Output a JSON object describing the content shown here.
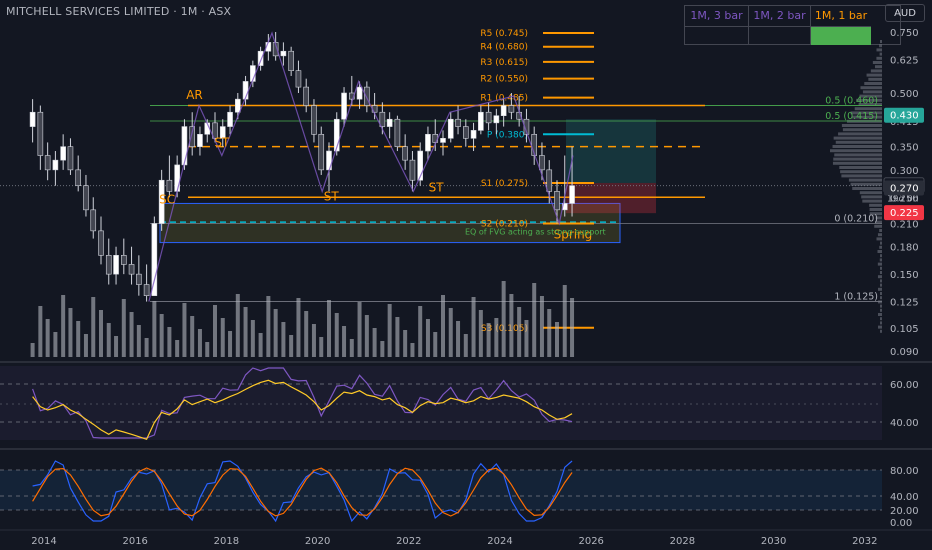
{
  "header": {
    "title": "MITCHELL SERVICES LIMITED · 1M · ASX",
    "currency": "AUD"
  },
  "timeframes": [
    {
      "label": "1M, 3 bar",
      "color": "#7e57c2"
    },
    {
      "label": "1M, 2 bar",
      "color": "#7e57c2"
    },
    {
      "label": "1M, 1 bar",
      "color": "#ff9800"
    }
  ],
  "chart_data": {
    "type": "candlestick",
    "x_ticks": [
      "2014",
      "2016",
      "2018",
      "2020",
      "2022",
      "2024",
      "2026",
      "2028",
      "2030",
      "2032"
    ],
    "price_axis_ticks": [
      "0.750",
      "0.625",
      "0.500",
      "0.415",
      "0.350",
      "0.300",
      "0.250",
      "0.210",
      "0.180",
      "0.150",
      "0.125",
      "0.105",
      "0.090"
    ],
    "price_badges": [
      {
        "label": "0.430",
        "value": 0.43,
        "color": "#26a69a"
      },
      {
        "label": "0.270",
        "value": 0.27,
        "color": "#131722",
        "sub": "19d 0h"
      },
      {
        "label": "0.270",
        "value": 0.265,
        "color": "#2a2e39"
      },
      {
        "label": "0.225",
        "value": 0.225,
        "color": "#f23645"
      }
    ],
    "pivots": [
      {
        "label": "R5 (0.745)",
        "value": 0.745
      },
      {
        "label": "R4 (0.680)",
        "value": 0.68
      },
      {
        "label": "R3 (0.615)",
        "value": 0.615
      },
      {
        "label": "R2 (0.550)",
        "value": 0.55
      },
      {
        "label": "R1 (0.485)",
        "value": 0.485
      },
      {
        "label": "P (0.380)",
        "value": 0.38
      },
      {
        "label": "S1 (0.275)",
        "value": 0.275
      },
      {
        "label": "S2 (0.210)",
        "value": 0.21
      },
      {
        "label": "S3 (0.105)",
        "value": 0.105
      }
    ],
    "fib_levels": [
      {
        "label": "0.5 (0.460)",
        "value": 0.46
      },
      {
        "label": "0.5 (0.415)",
        "value": 0.415
      },
      {
        "label": "0 (0.210)",
        "value": 0.21
      },
      {
        "label": "1 (0.125)",
        "value": 0.125
      }
    ],
    "wyckoff_labels": [
      "AR",
      "ST",
      "SC",
      "ST",
      "ST",
      "Spring"
    ],
    "annotation": "EQ of FVG acting as strong support",
    "rsi": {
      "ticks": [
        "60.00",
        "40.00"
      ]
    },
    "stoch": {
      "ticks": [
        "80.00",
        "40.00",
        "20.00",
        "0.00"
      ]
    },
    "series": [
      {
        "t": 2013.75,
        "o": 0.4,
        "h": 0.48,
        "l": 0.36,
        "c": 0.44
      },
      {
        "t": 2013.92,
        "o": 0.44,
        "h": 0.46,
        "l": 0.3,
        "c": 0.33
      },
      {
        "t": 2014.08,
        "o": 0.33,
        "h": 0.36,
        "l": 0.28,
        "c": 0.3
      },
      {
        "t": 2014.25,
        "o": 0.3,
        "h": 0.34,
        "l": 0.27,
        "c": 0.32
      },
      {
        "t": 2014.42,
        "o": 0.32,
        "h": 0.38,
        "l": 0.3,
        "c": 0.35
      },
      {
        "t": 2014.58,
        "o": 0.35,
        "h": 0.37,
        "l": 0.29,
        "c": 0.3
      },
      {
        "t": 2014.75,
        "o": 0.3,
        "h": 0.33,
        "l": 0.26,
        "c": 0.27
      },
      {
        "t": 2014.92,
        "o": 0.27,
        "h": 0.29,
        "l": 0.22,
        "c": 0.23
      },
      {
        "t": 2015.08,
        "o": 0.23,
        "h": 0.25,
        "l": 0.19,
        "c": 0.2
      },
      {
        "t": 2015.25,
        "o": 0.2,
        "h": 0.22,
        "l": 0.16,
        "c": 0.17
      },
      {
        "t": 2015.42,
        "o": 0.17,
        "h": 0.19,
        "l": 0.14,
        "c": 0.15
      },
      {
        "t": 2015.58,
        "o": 0.15,
        "h": 0.18,
        "l": 0.14,
        "c": 0.17
      },
      {
        "t": 2015.75,
        "o": 0.17,
        "h": 0.19,
        "l": 0.15,
        "c": 0.16
      },
      {
        "t": 2015.92,
        "o": 0.16,
        "h": 0.18,
        "l": 0.14,
        "c": 0.15
      },
      {
        "t": 2016.08,
        "o": 0.15,
        "h": 0.17,
        "l": 0.13,
        "c": 0.14
      },
      {
        "t": 2016.25,
        "o": 0.14,
        "h": 0.16,
        "l": 0.125,
        "c": 0.13
      },
      {
        "t": 2016.42,
        "o": 0.13,
        "h": 0.22,
        "l": 0.13,
        "c": 0.21
      },
      {
        "t": 2016.58,
        "o": 0.21,
        "h": 0.3,
        "l": 0.2,
        "c": 0.28
      },
      {
        "t": 2016.75,
        "o": 0.28,
        "h": 0.33,
        "l": 0.25,
        "c": 0.26
      },
      {
        "t": 2016.92,
        "o": 0.26,
        "h": 0.33,
        "l": 0.25,
        "c": 0.31
      },
      {
        "t": 2017.08,
        "o": 0.31,
        "h": 0.42,
        "l": 0.3,
        "c": 0.4
      },
      {
        "t": 2017.25,
        "o": 0.4,
        "h": 0.44,
        "l": 0.33,
        "c": 0.35
      },
      {
        "t": 2017.42,
        "o": 0.35,
        "h": 0.4,
        "l": 0.33,
        "c": 0.38
      },
      {
        "t": 2017.58,
        "o": 0.38,
        "h": 0.42,
        "l": 0.36,
        "c": 0.41
      },
      {
        "t": 2017.75,
        "o": 0.41,
        "h": 0.44,
        "l": 0.36,
        "c": 0.37
      },
      {
        "t": 2017.92,
        "o": 0.37,
        "h": 0.42,
        "l": 0.35,
        "c": 0.4
      },
      {
        "t": 2018.08,
        "o": 0.4,
        "h": 0.46,
        "l": 0.38,
        "c": 0.44
      },
      {
        "t": 2018.25,
        "o": 0.44,
        "h": 0.5,
        "l": 0.42,
        "c": 0.48
      },
      {
        "t": 2018.42,
        "o": 0.48,
        "h": 0.56,
        "l": 0.46,
        "c": 0.54
      },
      {
        "t": 2018.58,
        "o": 0.54,
        "h": 0.62,
        "l": 0.52,
        "c": 0.6
      },
      {
        "t": 2018.75,
        "o": 0.6,
        "h": 0.68,
        "l": 0.58,
        "c": 0.66
      },
      {
        "t": 2018.92,
        "o": 0.66,
        "h": 0.74,
        "l": 0.62,
        "c": 0.7
      },
      {
        "t": 2019.08,
        "o": 0.7,
        "h": 0.75,
        "l": 0.62,
        "c": 0.64
      },
      {
        "t": 2019.25,
        "o": 0.64,
        "h": 0.7,
        "l": 0.6,
        "c": 0.66
      },
      {
        "t": 2019.42,
        "o": 0.66,
        "h": 0.68,
        "l": 0.56,
        "c": 0.58
      },
      {
        "t": 2019.58,
        "o": 0.58,
        "h": 0.62,
        "l": 0.5,
        "c": 0.52
      },
      {
        "t": 2019.75,
        "o": 0.52,
        "h": 0.55,
        "l": 0.44,
        "c": 0.46
      },
      {
        "t": 2019.92,
        "o": 0.46,
        "h": 0.48,
        "l": 0.36,
        "c": 0.38
      },
      {
        "t": 2020.08,
        "o": 0.38,
        "h": 0.4,
        "l": 0.29,
        "c": 0.3
      },
      {
        "t": 2020.25,
        "o": 0.3,
        "h": 0.36,
        "l": 0.26,
        "c": 0.34
      },
      {
        "t": 2020.42,
        "o": 0.34,
        "h": 0.44,
        "l": 0.33,
        "c": 0.42
      },
      {
        "t": 2020.58,
        "o": 0.42,
        "h": 0.52,
        "l": 0.4,
        "c": 0.5
      },
      {
        "t": 2020.75,
        "o": 0.5,
        "h": 0.56,
        "l": 0.46,
        "c": 0.48
      },
      {
        "t": 2020.92,
        "o": 0.48,
        "h": 0.54,
        "l": 0.45,
        "c": 0.52
      },
      {
        "t": 2021.08,
        "o": 0.52,
        "h": 0.54,
        "l": 0.44,
        "c": 0.46
      },
      {
        "t": 2021.25,
        "o": 0.46,
        "h": 0.5,
        "l": 0.42,
        "c": 0.44
      },
      {
        "t": 2021.42,
        "o": 0.44,
        "h": 0.47,
        "l": 0.38,
        "c": 0.4
      },
      {
        "t": 2021.58,
        "o": 0.4,
        "h": 0.44,
        "l": 0.37,
        "c": 0.42
      },
      {
        "t": 2021.75,
        "o": 0.42,
        "h": 0.43,
        "l": 0.34,
        "c": 0.35
      },
      {
        "t": 2021.92,
        "o": 0.35,
        "h": 0.38,
        "l": 0.3,
        "c": 0.32
      },
      {
        "t": 2022.08,
        "o": 0.32,
        "h": 0.34,
        "l": 0.26,
        "c": 0.28
      },
      {
        "t": 2022.25,
        "o": 0.28,
        "h": 0.36,
        "l": 0.27,
        "c": 0.34
      },
      {
        "t": 2022.42,
        "o": 0.34,
        "h": 0.4,
        "l": 0.32,
        "c": 0.38
      },
      {
        "t": 2022.58,
        "o": 0.38,
        "h": 0.42,
        "l": 0.34,
        "c": 0.36
      },
      {
        "t": 2022.75,
        "o": 0.36,
        "h": 0.39,
        "l": 0.33,
        "c": 0.37
      },
      {
        "t": 2022.92,
        "o": 0.37,
        "h": 0.44,
        "l": 0.36,
        "c": 0.42
      },
      {
        "t": 2023.08,
        "o": 0.42,
        "h": 0.46,
        "l": 0.38,
        "c": 0.4
      },
      {
        "t": 2023.25,
        "o": 0.4,
        "h": 0.42,
        "l": 0.35,
        "c": 0.37
      },
      {
        "t": 2023.42,
        "o": 0.37,
        "h": 0.41,
        "l": 0.34,
        "c": 0.39
      },
      {
        "t": 2023.58,
        "o": 0.39,
        "h": 0.46,
        "l": 0.38,
        "c": 0.44
      },
      {
        "t": 2023.75,
        "o": 0.44,
        "h": 0.47,
        "l": 0.39,
        "c": 0.41
      },
      {
        "t": 2023.92,
        "o": 0.41,
        "h": 0.45,
        "l": 0.38,
        "c": 0.43
      },
      {
        "t": 2024.08,
        "o": 0.43,
        "h": 0.48,
        "l": 0.4,
        "c": 0.46
      },
      {
        "t": 2024.25,
        "o": 0.46,
        "h": 0.5,
        "l": 0.42,
        "c": 0.44
      },
      {
        "t": 2024.42,
        "o": 0.44,
        "h": 0.49,
        "l": 0.4,
        "c": 0.42
      },
      {
        "t": 2024.58,
        "o": 0.42,
        "h": 0.45,
        "l": 0.36,
        "c": 0.38
      },
      {
        "t": 2024.75,
        "o": 0.38,
        "h": 0.4,
        "l": 0.31,
        "c": 0.33
      },
      {
        "t": 2024.92,
        "o": 0.33,
        "h": 0.36,
        "l": 0.28,
        "c": 0.3
      },
      {
        "t": 2025.08,
        "o": 0.3,
        "h": 0.32,
        "l": 0.24,
        "c": 0.26
      },
      {
        "t": 2025.25,
        "o": 0.26,
        "h": 0.28,
        "l": 0.21,
        "c": 0.23
      },
      {
        "t": 2025.42,
        "o": 0.23,
        "h": 0.33,
        "l": 0.22,
        "c": 0.24
      },
      {
        "t": 2025.58,
        "o": 0.24,
        "h": 0.35,
        "l": 0.22,
        "c": 0.27
      }
    ]
  }
}
